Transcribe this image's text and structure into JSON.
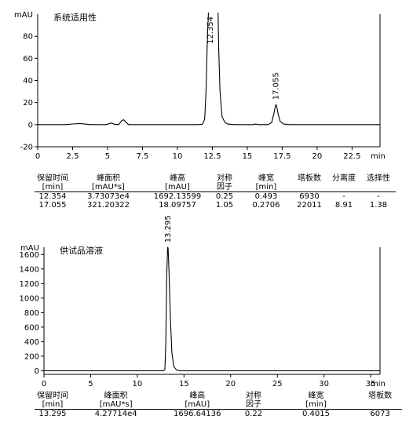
{
  "chart_data": [
    {
      "type": "line",
      "title": "系统适用性",
      "ylabel": "mAU",
      "xlabel": "min",
      "xlim": [
        0,
        24.5
      ],
      "ylim": [
        -20,
        100
      ],
      "xticks": [
        "0",
        "2.5",
        "5",
        "7.5",
        "10",
        "12.5",
        "15",
        "17.5",
        "20",
        "22.5"
      ],
      "yticks": [
        "-20",
        "0",
        "20",
        "40",
        "60",
        "80"
      ],
      "peaks": [
        {
          "label": "12.354",
          "rt": 12.354,
          "height": 1692.13599,
          "clipped": true
        },
        {
          "label": "17.055",
          "rt": 17.055,
          "height": 18.09757
        }
      ],
      "trace": [
        [
          0,
          0
        ],
        [
          2.0,
          0
        ],
        [
          2.5,
          0.6
        ],
        [
          3.0,
          1.0
        ],
        [
          3.4,
          0.5
        ],
        [
          3.8,
          0
        ],
        [
          4.9,
          0
        ],
        [
          5.1,
          0.8
        ],
        [
          5.3,
          1.5
        ],
        [
          5.5,
          0.3
        ],
        [
          5.8,
          0
        ],
        [
          6.0,
          3.5
        ],
        [
          6.15,
          4.5
        ],
        [
          6.3,
          2.5
        ],
        [
          6.5,
          0
        ],
        [
          11.5,
          0
        ],
        [
          11.8,
          0.5
        ],
        [
          11.95,
          5
        ],
        [
          12.05,
          30
        ],
        [
          12.15,
          80
        ],
        [
          12.25,
          110
        ],
        [
          12.9,
          110
        ],
        [
          12.95,
          70
        ],
        [
          13.05,
          30
        ],
        [
          13.2,
          7
        ],
        [
          13.4,
          2
        ],
        [
          13.6,
          0.5
        ],
        [
          14.1,
          0
        ],
        [
          15.4,
          0
        ],
        [
          15.6,
          0.5
        ],
        [
          15.8,
          0
        ],
        [
          16.5,
          0
        ],
        [
          16.75,
          2
        ],
        [
          16.9,
          10
        ],
        [
          17.0,
          16
        ],
        [
          17.05,
          18
        ],
        [
          17.1,
          17
        ],
        [
          17.2,
          10
        ],
        [
          17.35,
          3
        ],
        [
          17.6,
          0.5
        ],
        [
          18.0,
          0
        ],
        [
          24.5,
          0
        ]
      ]
    },
    {
      "type": "line",
      "title": "供试品溶液",
      "ylabel": "mAU",
      "xlabel": "min",
      "xlim": [
        0,
        36
      ],
      "ylim": [
        -50,
        1700
      ],
      "xticks": [
        "0",
        "5",
        "10",
        "15",
        "20",
        "25",
        "30",
        "35"
      ],
      "yticks": [
        "0",
        "200",
        "400",
        "600",
        "800",
        "1000",
        "1200",
        "1400",
        "1600"
      ],
      "peaks": [
        {
          "label": "13.295",
          "rt": 13.295,
          "height": 1696.64136
        }
      ],
      "trace": [
        [
          0,
          0
        ],
        [
          12.8,
          0
        ],
        [
          12.95,
          20
        ],
        [
          13.05,
          400
        ],
        [
          13.15,
          1300
        ],
        [
          13.25,
          1696
        ],
        [
          13.3,
          1690
        ],
        [
          13.4,
          1350
        ],
        [
          13.55,
          700
        ],
        [
          13.7,
          250
        ],
        [
          13.9,
          60
        ],
        [
          14.2,
          10
        ],
        [
          14.6,
          0
        ],
        [
          36,
          0
        ]
      ]
    }
  ],
  "table1": {
    "headers": [
      [
        "保留时间",
        "峰面积",
        "峰高",
        "对称",
        "峰宽",
        "塔板数",
        "分离度",
        "选择性"
      ],
      [
        "[min]",
        "[mAU*s]",
        "[mAU]",
        "因子",
        "[min]",
        "",
        "",
        ""
      ]
    ],
    "rows": [
      [
        "12.354",
        "3.73073e4",
        "1692.13599",
        "0.25",
        "0.493",
        "6930",
        "-",
        "-"
      ],
      [
        "17.055",
        "321.20322",
        "18.09757",
        "1.05",
        "0.2706",
        "22011",
        "8.91",
        "1.38"
      ]
    ]
  },
  "table2": {
    "headers": [
      [
        "保留时间",
        "峰面积",
        "峰高",
        "对称",
        "峰宽",
        "塔板数"
      ],
      [
        "[min]",
        "[mAU*s]",
        "[mAU]",
        "因子",
        "[min]",
        ""
      ]
    ],
    "rows": [
      [
        "13.295",
        "4.27714e4",
        "1696.64136",
        "0.22",
        "0.4015",
        "6073"
      ]
    ]
  }
}
